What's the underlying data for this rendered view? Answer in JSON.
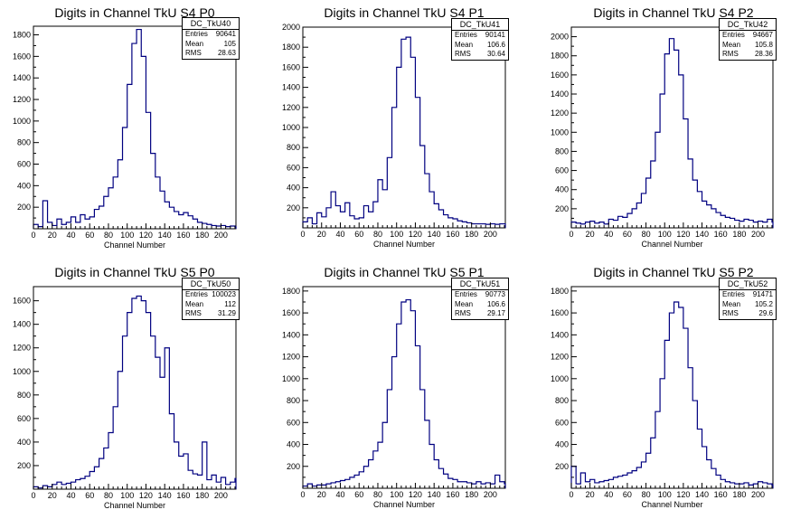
{
  "colors": {
    "histogram": "#000080",
    "axis": "#000000",
    "background": "#ffffff"
  },
  "chart_data": [
    {
      "type": "bar",
      "title": "Digits in Channel TkU S4 P0",
      "xlabel": "Channel Number",
      "xlim": [
        0,
        216
      ],
      "ylim": [
        0,
        1880
      ],
      "xticks": [
        "0",
        "20",
        "40",
        "60",
        "80",
        "100",
        "120",
        "140",
        "160",
        "180",
        "200"
      ],
      "yticks": [
        "200",
        "400",
        "600",
        "800",
        "1000",
        "1200",
        "1400",
        "1600",
        "1800"
      ],
      "ytick_values": [
        200,
        400,
        600,
        800,
        1000,
        1200,
        1400,
        1600,
        1800
      ],
      "stats": {
        "name": "DC_TkU40",
        "entries_label": "Entries",
        "entries": "90641",
        "mean_label": "Mean",
        "mean": "105",
        "rms_label": "RMS",
        "rms": "28.63"
      },
      "bins": [
        [
          0,
          40
        ],
        [
          5,
          20
        ],
        [
          10,
          260
        ],
        [
          15,
          60
        ],
        [
          20,
          30
        ],
        [
          25,
          90
        ],
        [
          30,
          40
        ],
        [
          35,
          60
        ],
        [
          40,
          110
        ],
        [
          45,
          60
        ],
        [
          50,
          130
        ],
        [
          55,
          90
        ],
        [
          60,
          110
        ],
        [
          65,
          180
        ],
        [
          70,
          210
        ],
        [
          75,
          300
        ],
        [
          80,
          380
        ],
        [
          85,
          480
        ],
        [
          90,
          640
        ],
        [
          95,
          940
        ],
        [
          100,
          1340
        ],
        [
          105,
          1720
        ],
        [
          110,
          1850
        ],
        [
          115,
          1600
        ],
        [
          120,
          1080
        ],
        [
          125,
          700
        ],
        [
          130,
          480
        ],
        [
          135,
          350
        ],
        [
          140,
          250
        ],
        [
          145,
          200
        ],
        [
          150,
          160
        ],
        [
          155,
          130
        ],
        [
          160,
          150
        ],
        [
          165,
          120
        ],
        [
          170,
          90
        ],
        [
          175,
          60
        ],
        [
          180,
          50
        ],
        [
          185,
          40
        ],
        [
          190,
          30
        ],
        [
          195,
          25
        ],
        [
          200,
          30
        ],
        [
          205,
          20
        ],
        [
          210,
          25
        ],
        [
          215,
          20
        ]
      ]
    },
    {
      "type": "bar",
      "title": "Digits in Channel TkU S4 P1",
      "xlabel": "Channel Number",
      "xlim": [
        0,
        216
      ],
      "ylim": [
        0,
        2000
      ],
      "xticks": [
        "0",
        "20",
        "40",
        "60",
        "80",
        "100",
        "120",
        "140",
        "160",
        "180",
        "200"
      ],
      "yticks": [
        "200",
        "400",
        "600",
        "800",
        "1000",
        "1200",
        "1400",
        "1600",
        "1800",
        "2000"
      ],
      "ytick_values": [
        200,
        400,
        600,
        800,
        1000,
        1200,
        1400,
        1600,
        1800,
        2000
      ],
      "stats": {
        "name": "DC_TkU41",
        "entries_label": "Entries",
        "entries": "90141",
        "mean_label": "Mean",
        "mean": "106.6",
        "rms_label": "RMS",
        "rms": "30.64"
      },
      "bins": [
        [
          0,
          60
        ],
        [
          5,
          100
        ],
        [
          10,
          40
        ],
        [
          15,
          150
        ],
        [
          20,
          110
        ],
        [
          25,
          200
        ],
        [
          30,
          360
        ],
        [
          35,
          220
        ],
        [
          40,
          160
        ],
        [
          45,
          250
        ],
        [
          50,
          120
        ],
        [
          55,
          90
        ],
        [
          60,
          100
        ],
        [
          65,
          220
        ],
        [
          70,
          160
        ],
        [
          75,
          260
        ],
        [
          80,
          480
        ],
        [
          85,
          380
        ],
        [
          90,
          700
        ],
        [
          95,
          1200
        ],
        [
          100,
          1600
        ],
        [
          105,
          1880
        ],
        [
          110,
          1900
        ],
        [
          115,
          1700
        ],
        [
          120,
          1300
        ],
        [
          125,
          820
        ],
        [
          130,
          540
        ],
        [
          135,
          360
        ],
        [
          140,
          240
        ],
        [
          145,
          180
        ],
        [
          150,
          130
        ],
        [
          155,
          100
        ],
        [
          160,
          90
        ],
        [
          165,
          70
        ],
        [
          170,
          60
        ],
        [
          175,
          50
        ],
        [
          180,
          40
        ],
        [
          185,
          40
        ],
        [
          190,
          40
        ],
        [
          195,
          35
        ],
        [
          200,
          40
        ],
        [
          205,
          35
        ],
        [
          210,
          40
        ],
        [
          215,
          40
        ]
      ]
    },
    {
      "type": "bar",
      "title": "Digits in Channel TkU S4 P2",
      "xlabel": "Channel Number",
      "xlim": [
        0,
        216
      ],
      "ylim": [
        0,
        2100
      ],
      "xticks": [
        "0",
        "20",
        "40",
        "60",
        "80",
        "100",
        "120",
        "140",
        "160",
        "180",
        "200"
      ],
      "yticks": [
        "200",
        "400",
        "600",
        "800",
        "1000",
        "1200",
        "1400",
        "1600",
        "1800",
        "2000"
      ],
      "ytick_values": [
        200,
        400,
        600,
        800,
        1000,
        1200,
        1400,
        1600,
        1800,
        2000
      ],
      "stats": {
        "name": "DC_TkU42",
        "entries_label": "Entries",
        "entries": "94667",
        "mean_label": "Mean",
        "mean": "105.8",
        "rms_label": "RMS",
        "rms": "28.36"
      },
      "bins": [
        [
          0,
          60
        ],
        [
          5,
          50
        ],
        [
          10,
          40
        ],
        [
          15,
          60
        ],
        [
          20,
          70
        ],
        [
          25,
          50
        ],
        [
          30,
          60
        ],
        [
          35,
          40
        ],
        [
          40,
          90
        ],
        [
          45,
          80
        ],
        [
          50,
          120
        ],
        [
          55,
          110
        ],
        [
          60,
          150
        ],
        [
          65,
          200
        ],
        [
          70,
          260
        ],
        [
          75,
          360
        ],
        [
          80,
          520
        ],
        [
          85,
          700
        ],
        [
          90,
          1000
        ],
        [
          95,
          1400
        ],
        [
          100,
          1820
        ],
        [
          105,
          1980
        ],
        [
          110,
          1860
        ],
        [
          115,
          1600
        ],
        [
          120,
          1140
        ],
        [
          125,
          720
        ],
        [
          130,
          500
        ],
        [
          135,
          380
        ],
        [
          140,
          280
        ],
        [
          145,
          240
        ],
        [
          150,
          200
        ],
        [
          155,
          160
        ],
        [
          160,
          130
        ],
        [
          165,
          110
        ],
        [
          170,
          100
        ],
        [
          175,
          80
        ],
        [
          180,
          70
        ],
        [
          185,
          90
        ],
        [
          190,
          80
        ],
        [
          195,
          60
        ],
        [
          200,
          70
        ],
        [
          205,
          60
        ],
        [
          210,
          90
        ],
        [
          215,
          60
        ]
      ]
    },
    {
      "type": "bar",
      "title": "Digits in Channel TkU S5 P0",
      "xlabel": "Channel Number",
      "xlim": [
        0,
        216
      ],
      "ylim": [
        0,
        1720
      ],
      "xticks": [
        "0",
        "20",
        "40",
        "60",
        "80",
        "100",
        "120",
        "140",
        "160",
        "180",
        "200"
      ],
      "yticks": [
        "200",
        "400",
        "600",
        "800",
        "1000",
        "1200",
        "1400",
        "1600"
      ],
      "ytick_values": [
        200,
        400,
        600,
        800,
        1000,
        1200,
        1400,
        1600
      ],
      "stats": {
        "name": "DC_TkU50",
        "entries_label": "Entries",
        "entries": "100023",
        "mean_label": "Mean",
        "mean": "112",
        "rms_label": "RMS",
        "rms": "31.29"
      },
      "bins": [
        [
          0,
          20
        ],
        [
          5,
          10
        ],
        [
          10,
          30
        ],
        [
          15,
          20
        ],
        [
          20,
          40
        ],
        [
          25,
          60
        ],
        [
          30,
          40
        ],
        [
          35,
          50
        ],
        [
          40,
          60
        ],
        [
          45,
          80
        ],
        [
          50,
          90
        ],
        [
          55,
          110
        ],
        [
          60,
          150
        ],
        [
          65,
          190
        ],
        [
          70,
          260
        ],
        [
          75,
          350
        ],
        [
          80,
          480
        ],
        [
          85,
          700
        ],
        [
          90,
          1000
        ],
        [
          95,
          1300
        ],
        [
          100,
          1500
        ],
        [
          105,
          1620
        ],
        [
          110,
          1640
        ],
        [
          115,
          1600
        ],
        [
          120,
          1500
        ],
        [
          125,
          1300
        ],
        [
          130,
          1120
        ],
        [
          135,
          950
        ],
        [
          140,
          1200
        ],
        [
          145,
          640
        ],
        [
          150,
          400
        ],
        [
          155,
          280
        ],
        [
          160,
          300
        ],
        [
          165,
          160
        ],
        [
          170,
          130
        ],
        [
          175,
          120
        ],
        [
          180,
          400
        ],
        [
          185,
          80
        ],
        [
          190,
          120
        ],
        [
          195,
          60
        ],
        [
          200,
          100
        ],
        [
          205,
          40
        ],
        [
          210,
          60
        ],
        [
          215,
          90
        ]
      ]
    },
    {
      "type": "bar",
      "title": "Digits in Channel TkU S5 P1",
      "xlabel": "Channel Number",
      "xlim": [
        0,
        216
      ],
      "ylim": [
        0,
        1840
      ],
      "xticks": [
        "0",
        "20",
        "40",
        "60",
        "80",
        "100",
        "120",
        "140",
        "160",
        "180",
        "200"
      ],
      "yticks": [
        "200",
        "400",
        "600",
        "800",
        "1000",
        "1200",
        "1400",
        "1600",
        "1800"
      ],
      "ytick_values": [
        200,
        400,
        600,
        800,
        1000,
        1200,
        1400,
        1600,
        1800
      ],
      "stats": {
        "name": "DC_TkU51",
        "entries_label": "Entries",
        "entries": "90773",
        "mean_label": "Mean",
        "mean": "106.6",
        "rms_label": "RMS",
        "rms": "29.17"
      },
      "bins": [
        [
          0,
          20
        ],
        [
          5,
          40
        ],
        [
          10,
          20
        ],
        [
          15,
          30
        ],
        [
          20,
          30
        ],
        [
          25,
          40
        ],
        [
          30,
          50
        ],
        [
          35,
          60
        ],
        [
          40,
          70
        ],
        [
          45,
          80
        ],
        [
          50,
          100
        ],
        [
          55,
          120
        ],
        [
          60,
          150
        ],
        [
          65,
          200
        ],
        [
          70,
          260
        ],
        [
          75,
          340
        ],
        [
          80,
          420
        ],
        [
          85,
          600
        ],
        [
          90,
          900
        ],
        [
          95,
          1200
        ],
        [
          100,
          1500
        ],
        [
          105,
          1700
        ],
        [
          110,
          1720
        ],
        [
          115,
          1620
        ],
        [
          120,
          1300
        ],
        [
          125,
          900
        ],
        [
          130,
          620
        ],
        [
          135,
          400
        ],
        [
          140,
          260
        ],
        [
          145,
          180
        ],
        [
          150,
          130
        ],
        [
          155,
          90
        ],
        [
          160,
          80
        ],
        [
          165,
          60
        ],
        [
          170,
          60
        ],
        [
          175,
          50
        ],
        [
          180,
          40
        ],
        [
          185,
          60
        ],
        [
          190,
          40
        ],
        [
          195,
          50
        ],
        [
          200,
          40
        ],
        [
          205,
          120
        ],
        [
          210,
          60
        ],
        [
          215,
          40
        ]
      ]
    },
    {
      "type": "bar",
      "title": "Digits in Channel TkU S5 P2",
      "xlabel": "Channel Number",
      "xlim": [
        0,
        216
      ],
      "ylim": [
        0,
        1840
      ],
      "xticks": [
        "0",
        "20",
        "40",
        "60",
        "80",
        "100",
        "120",
        "140",
        "160",
        "180",
        "200"
      ],
      "yticks": [
        "200",
        "400",
        "600",
        "800",
        "1000",
        "1200",
        "1400",
        "1600",
        "1800"
      ],
      "ytick_values": [
        200,
        400,
        600,
        800,
        1000,
        1200,
        1400,
        1600,
        1800
      ],
      "stats": {
        "name": "DC_TkU52",
        "entries_label": "Entries",
        "entries": "91471",
        "mean_label": "Mean",
        "mean": "105.2",
        "rms_label": "RMS",
        "rms": "29.6"
      },
      "bins": [
        [
          0,
          200
        ],
        [
          5,
          40
        ],
        [
          10,
          140
        ],
        [
          15,
          60
        ],
        [
          20,
          80
        ],
        [
          25,
          50
        ],
        [
          30,
          60
        ],
        [
          35,
          70
        ],
        [
          40,
          80
        ],
        [
          45,
          100
        ],
        [
          50,
          110
        ],
        [
          55,
          120
        ],
        [
          60,
          140
        ],
        [
          65,
          160
        ],
        [
          70,
          190
        ],
        [
          75,
          240
        ],
        [
          80,
          320
        ],
        [
          85,
          460
        ],
        [
          90,
          700
        ],
        [
          95,
          1000
        ],
        [
          100,
          1350
        ],
        [
          105,
          1600
        ],
        [
          110,
          1700
        ],
        [
          115,
          1650
        ],
        [
          120,
          1460
        ],
        [
          125,
          1100
        ],
        [
          130,
          800
        ],
        [
          135,
          540
        ],
        [
          140,
          380
        ],
        [
          145,
          260
        ],
        [
          150,
          180
        ],
        [
          155,
          120
        ],
        [
          160,
          80
        ],
        [
          165,
          60
        ],
        [
          170,
          50
        ],
        [
          175,
          40
        ],
        [
          180,
          40
        ],
        [
          185,
          50
        ],
        [
          190,
          30
        ],
        [
          195,
          40
        ],
        [
          200,
          60
        ],
        [
          205,
          50
        ],
        [
          210,
          40
        ],
        [
          215,
          30
        ]
      ]
    }
  ]
}
